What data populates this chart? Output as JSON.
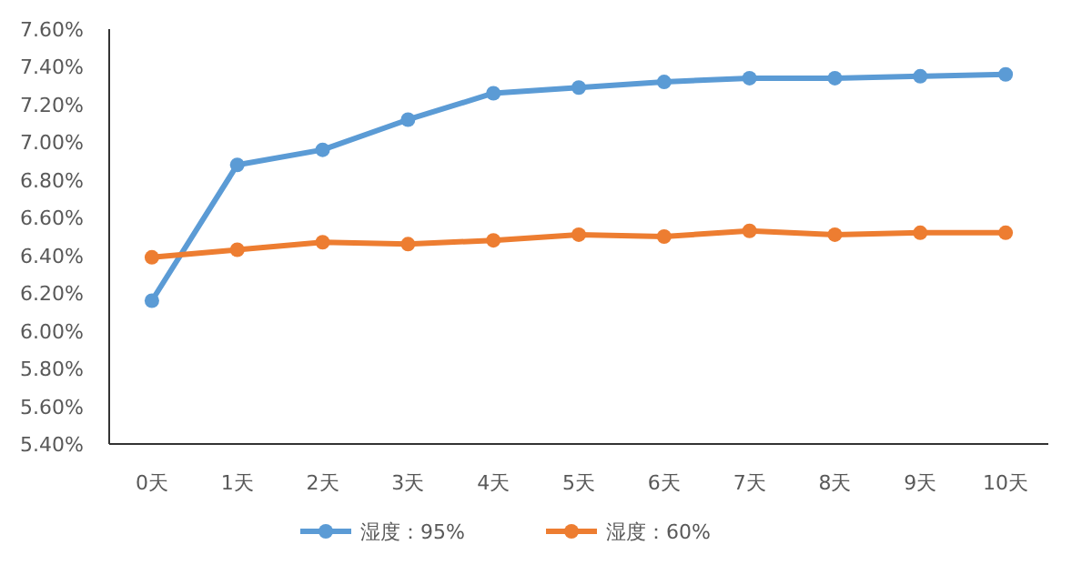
{
  "chart_data": {
    "type": "line",
    "categories": [
      "0天",
      "1天",
      "2天",
      "3天",
      "4天",
      "5天",
      "6天",
      "7天",
      "8天",
      "9天",
      "10天"
    ],
    "series": [
      {
        "name": "湿度：95%",
        "color": "#5b9bd5",
        "values": [
          6.16,
          6.88,
          6.96,
          7.12,
          7.26,
          7.29,
          7.32,
          7.34,
          7.34,
          7.35,
          7.36
        ]
      },
      {
        "name": "湿度：60%",
        "color": "#ed7d31",
        "values": [
          6.39,
          6.43,
          6.47,
          6.46,
          6.48,
          6.51,
          6.5,
          6.53,
          6.51,
          6.52,
          6.52
        ]
      }
    ],
    "ylim": [
      5.4,
      7.6
    ],
    "yticks": [
      {
        "value": 5.4,
        "label": "5.40%"
      },
      {
        "value": 5.6,
        "label": "5.60%"
      },
      {
        "value": 5.8,
        "label": "5.80%"
      },
      {
        "value": 6.0,
        "label": "6.00%"
      },
      {
        "value": 6.2,
        "label": "6.20%"
      },
      {
        "value": 6.4,
        "label": "6.40%"
      },
      {
        "value": 6.6,
        "label": "6.60%"
      },
      {
        "value": 6.8,
        "label": "6.80%"
      },
      {
        "value": 7.0,
        "label": "7.00%"
      },
      {
        "value": 7.2,
        "label": "7.20%"
      },
      {
        "value": 7.4,
        "label": "7.40%"
      },
      {
        "value": 7.6,
        "label": "7.60%"
      }
    ],
    "grid": false,
    "legend": "bottom",
    "marker": "circle",
    "line_style": "solid"
  }
}
